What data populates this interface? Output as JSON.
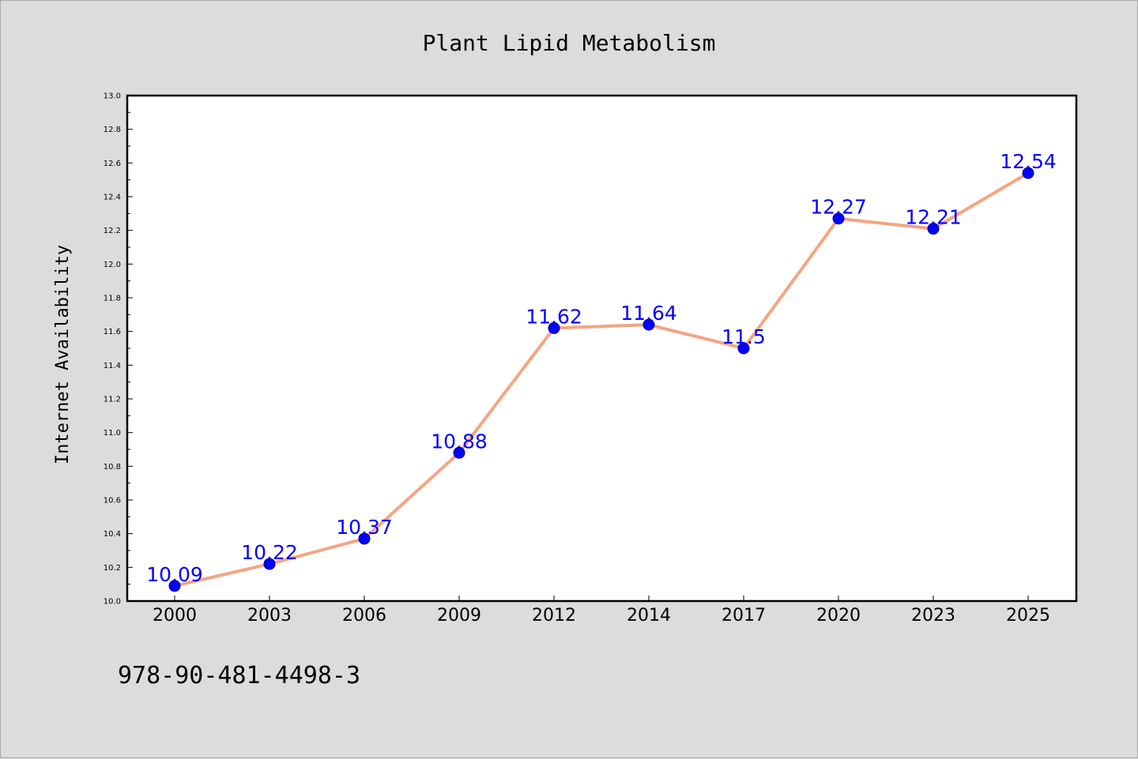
{
  "chart_data": {
    "type": "line",
    "title": "Plant Lipid Metabolism",
    "xlabel": "",
    "ylabel": "Internet Availability",
    "categories": [
      "2000",
      "2003",
      "2006",
      "2009",
      "2012",
      "2014",
      "2017",
      "2020",
      "2023",
      "2025"
    ],
    "series": [
      {
        "values": [
          10.09,
          10.22,
          10.37,
          10.88,
          11.62,
          11.64,
          11.5,
          12.27,
          12.21,
          12.54
        ],
        "labels": [
          "10.09",
          "10.22",
          "10.37",
          "10.88",
          "11.62",
          "11.64",
          "11.5",
          "12.27",
          "12.21",
          "12.54"
        ]
      }
    ],
    "ylim": [
      10.0,
      13.0
    ],
    "yticks": [
      "10.0",
      "10.2",
      "10.4",
      "10.6",
      "10.8",
      "11.0",
      "11.2",
      "11.4",
      "11.6",
      "11.8",
      "12.0",
      "12.2",
      "12.4",
      "12.6",
      "12.8",
      "13.0"
    ],
    "grid": false,
    "legend": "none",
    "colors": {
      "line": "#f4a582",
      "marker": "#0000ff",
      "data_label": "#0000ff",
      "plot_background": "#ffffff",
      "page_background": "#dcdcdc"
    }
  },
  "footer_text": "978-90-481-4498-3"
}
